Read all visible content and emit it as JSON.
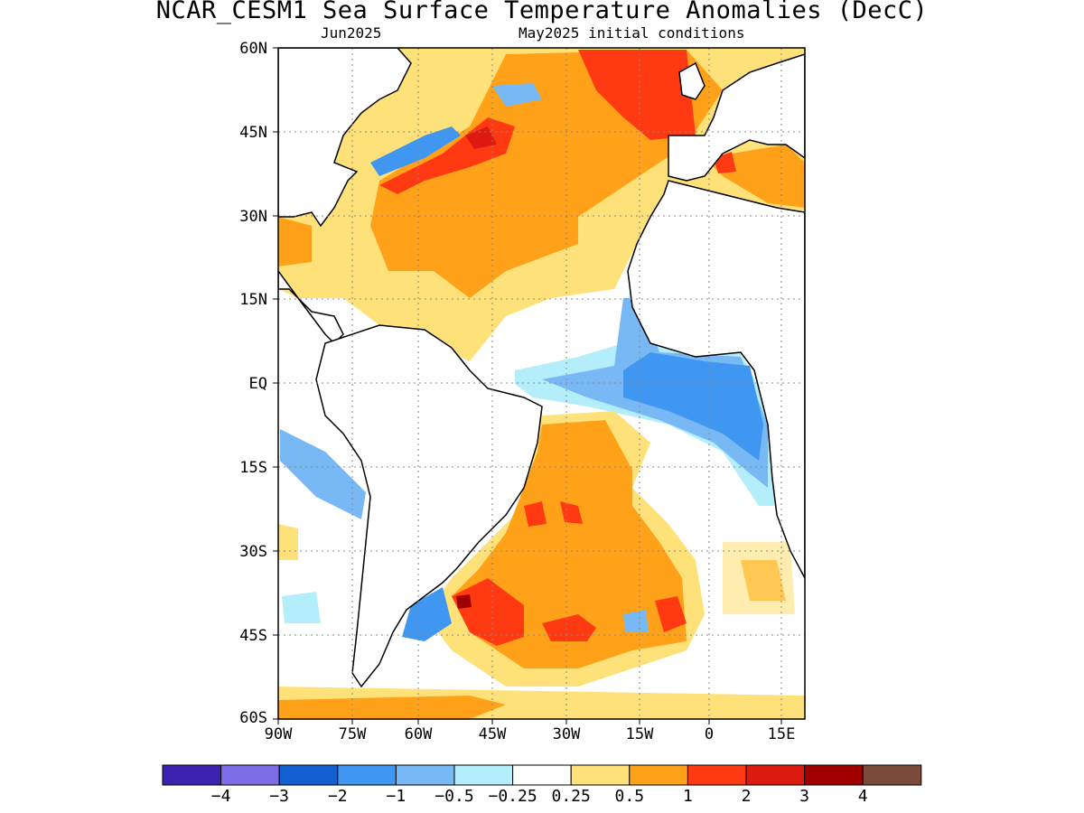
{
  "title": "NCAR_CESM1 Sea Surface Temperature Anomalies (DecC)",
  "subtitle_left": "Jun2025",
  "subtitle_right": "May2025 initial conditions",
  "map": {
    "lat_labels": [
      "60N",
      "45N",
      "30N",
      "15N",
      "EQ",
      "15S",
      "30S",
      "45S",
      "60S"
    ],
    "lon_labels": [
      "90W",
      "75W",
      "60W",
      "45W",
      "30W",
      "15W",
      "0",
      "15E"
    ],
    "lat_range": [
      -60,
      60
    ],
    "lon_range": [
      -90,
      17
    ],
    "grid": "dotted",
    "region": "Atlantic Ocean"
  },
  "colorbar": {
    "colors": [
      "#3b22b0",
      "#7f6de8",
      "#1460d2",
      "#3f97f2",
      "#78b8f4",
      "#b4eefa",
      "#ffffff",
      "#ffe17a",
      "#ffa21a",
      "#ff3a12",
      "#dc1a10",
      "#a00000",
      "#7a4a3a"
    ],
    "labels": [
      "−4",
      "−3",
      "−2",
      "−1",
      "−0.5",
      "−0.25",
      "0.25",
      "0.5",
      "1",
      "2",
      "3",
      "4"
    ]
  }
}
